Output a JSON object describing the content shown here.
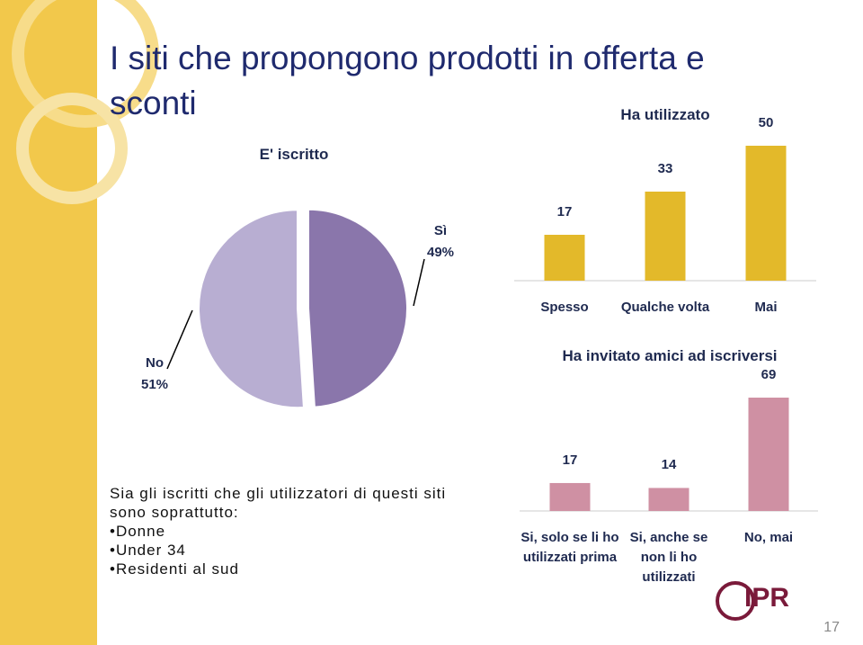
{
  "title": "I siti che propongono prodotti in offerta e sconti",
  "chart_data": [
    {
      "type": "pie",
      "title": "E' iscritto",
      "categories": [
        "Sì",
        "No"
      ],
      "values": [
        49,
        51
      ],
      "value_labels": [
        "49%",
        "51%"
      ],
      "colors": [
        "#8a76ab",
        "#b8aed2"
      ]
    },
    {
      "type": "bar",
      "title": "Ha utilizzato",
      "categories": [
        "Spesso",
        "Qualche volta",
        "Mai"
      ],
      "values": [
        17,
        33,
        50
      ],
      "color": "#e3b92a"
    },
    {
      "type": "bar",
      "title": "Ha invitato amici ad iscriversi",
      "categories": [
        "Si, solo se li ho utilizzati prima",
        "Si, anche se non li ho utilizzati",
        "No, mai"
      ],
      "values": [
        17,
        14,
        69
      ],
      "color": "#cf90a3"
    }
  ],
  "body": {
    "intro": "Sia gli iscritti che gli utilizzatori di questi siti sono soprattutto:",
    "bullets": [
      "Donne",
      "Under 34",
      "Residenti al sud"
    ]
  },
  "logo": "IPR",
  "page_number": "17"
}
